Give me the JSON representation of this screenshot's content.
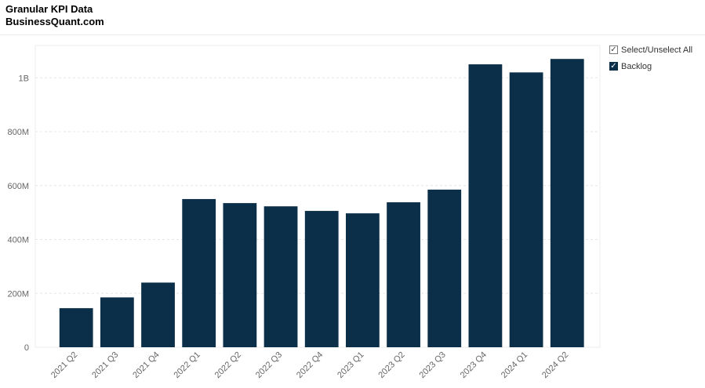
{
  "header": {
    "title": "Granular KPI Data",
    "subtitle": "BusinessQuant.com"
  },
  "legend": {
    "select_all": "Select/Unselect All",
    "series_label": "Backlog",
    "check_mark": "✓"
  },
  "chart_data": {
    "type": "bar",
    "categories": [
      "2021 Q2",
      "2021 Q3",
      "2021 Q4",
      "2022 Q1",
      "2022 Q2",
      "2022 Q3",
      "2022 Q4",
      "2023 Q1",
      "2023 Q2",
      "2023 Q3",
      "2023 Q4",
      "2024 Q1",
      "2024 Q2"
    ],
    "series": [
      {
        "name": "Backlog",
        "color": "#0b2f49",
        "values": [
          145000000,
          185000000,
          240000000,
          550000000,
          535000000,
          523000000,
          506000000,
          497000000,
          538000000,
          585000000,
          1050000000,
          1020000000,
          1070000000
        ]
      }
    ],
    "yticks": [
      0,
      200000000,
      400000000,
      600000000,
      800000000,
      1000000000
    ],
    "ytick_labels": [
      "0",
      "200M",
      "400M",
      "600M",
      "800M",
      "1B"
    ],
    "ylim": [
      0,
      1120000000
    ],
    "grid": true,
    "legend_position": "top-right"
  }
}
